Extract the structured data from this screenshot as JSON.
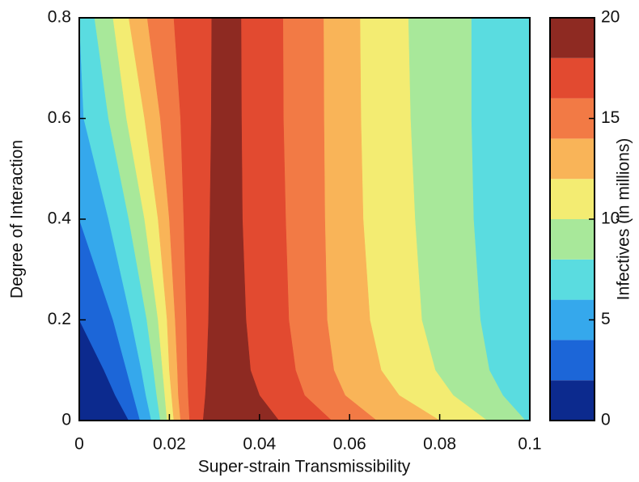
{
  "chart_data": {
    "type": "contourf",
    "x_label": "Super-strain Transmissibility",
    "y_label": "Degree of Interaction",
    "colorbar_label": "Infectives (in millions)",
    "xlim": [
      0,
      0.1
    ],
    "ylim": [
      0,
      0.8
    ],
    "xticks": [
      0,
      0.02,
      0.04,
      0.06,
      0.08,
      0.1
    ],
    "yticks": [
      0,
      0.2,
      0.4,
      0.6,
      0.8
    ],
    "clim": [
      0,
      20
    ],
    "cticks": [
      0,
      5,
      10,
      15,
      20
    ],
    "levels": [
      0,
      2,
      4,
      6,
      8,
      10,
      12,
      14,
      16,
      18,
      20
    ],
    "colors": [
      "#0c2a8e",
      "#1c66d8",
      "#35a8ec",
      "#5adce0",
      "#a8e89a",
      "#f3ec72",
      "#f9b458",
      "#f27a45",
      "#e24a30",
      "#8e2a22"
    ],
    "y_samples": [
      0,
      0.05,
      0.1,
      0.2,
      0.4,
      0.6,
      0.8
    ],
    "contours": [
      {
        "level": 2,
        "left": [
          0.011,
          0.008,
          0.0055,
          0,
          0,
          0,
          0
        ],
        "right": null
      },
      {
        "level": 4,
        "left": [
          0.0135,
          0.012,
          0.0105,
          0.0075,
          0,
          0,
          0
        ],
        "right": null
      },
      {
        "level": 6,
        "left": [
          0.016,
          0.0148,
          0.0138,
          0.0115,
          0.0065,
          0.001,
          0
        ],
        "right": null
      },
      {
        "level": 8,
        "left": [
          0.018,
          0.0172,
          0.0165,
          0.015,
          0.011,
          0.0065,
          0.0034
        ],
        "right": [
          0.099,
          0.094,
          0.091,
          0.089,
          0.0875,
          0.087,
          0.087
        ]
      },
      {
        "level": 10,
        "left": [
          0.0195,
          0.019,
          0.0185,
          0.0175,
          0.0145,
          0.0105,
          0.0075
        ],
        "right": [
          0.0905,
          0.083,
          0.079,
          0.076,
          0.0745,
          0.0735,
          0.073
        ]
      },
      {
        "level": 12,
        "left": [
          0.021,
          0.0205,
          0.02,
          0.0195,
          0.0175,
          0.0145,
          0.011
        ],
        "right": [
          0.08,
          0.071,
          0.067,
          0.0645,
          0.063,
          0.0625,
          0.0623
        ]
      },
      {
        "level": 14,
        "left": [
          0.0225,
          0.022,
          0.0218,
          0.0213,
          0.02,
          0.018,
          0.0151
        ],
        "right": [
          0.066,
          0.059,
          0.0565,
          0.055,
          0.0545,
          0.0543,
          0.0542
        ]
      },
      {
        "level": 16,
        "left": [
          0.0245,
          0.0242,
          0.024,
          0.0238,
          0.0232,
          0.0225,
          0.021
        ],
        "right": [
          0.056,
          0.05,
          0.048,
          0.0465,
          0.0458,
          0.0453,
          0.0452
        ]
      },
      {
        "level": 18,
        "left": [
          0.0275,
          0.028,
          0.0283,
          0.0287,
          0.029,
          0.0293,
          0.0294
        ],
        "right": [
          0.0443,
          0.04,
          0.038,
          0.037,
          0.0362,
          0.036,
          0.0359
        ]
      }
    ]
  }
}
